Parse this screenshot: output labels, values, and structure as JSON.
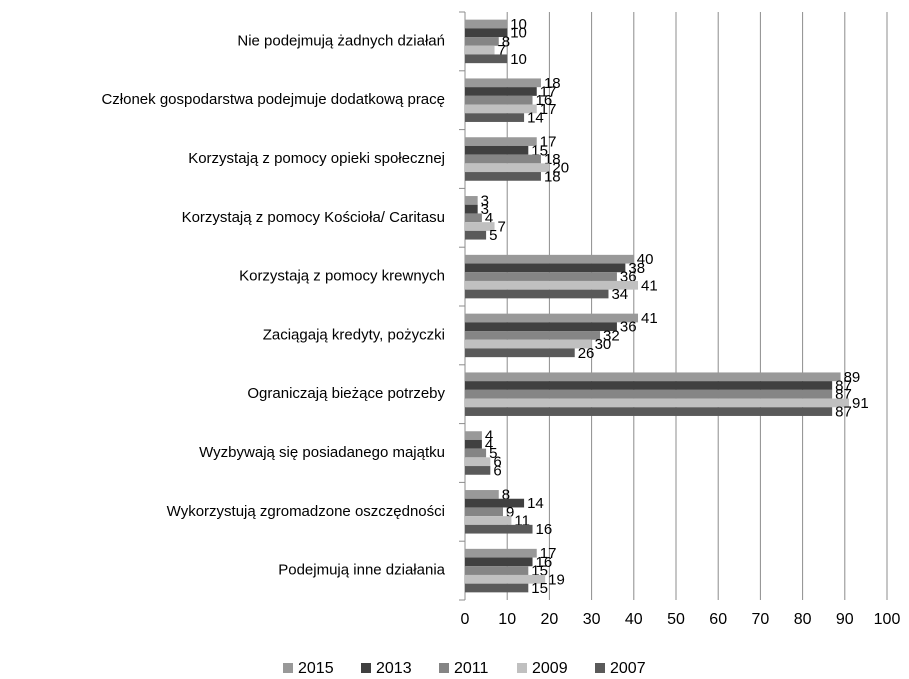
{
  "chart_data": {
    "type": "bar",
    "orientation": "horizontal",
    "categories": [
      "Nie podejmują żadnych działań",
      "Członek gospodarstwa podejmuje dodatkową pracę",
      "Korzystają z pomocy opieki społecznej",
      "Korzystają z pomocy Kościoła/ Caritasu",
      "Korzystają z pomocy krewnych",
      "Zaciągają kredyty, pożyczki",
      "Ograniczają bieżące potrzeby",
      "Wyzbywają się posiadanego majątku",
      "Wykorzystują zgromadzone oszczędności",
      "Podejmują inne działania"
    ],
    "series": [
      {
        "name": "2015",
        "color": "#999999",
        "values": [
          10,
          18,
          17,
          3,
          40,
          41,
          89,
          4,
          8,
          17
        ]
      },
      {
        "name": "2013",
        "color": "#404040",
        "values": [
          10,
          17,
          15,
          3,
          38,
          36,
          87,
          4,
          14,
          16
        ]
      },
      {
        "name": "2011",
        "color": "#858585",
        "values": [
          8,
          16,
          18,
          4,
          36,
          32,
          87,
          5,
          9,
          15
        ]
      },
      {
        "name": "2009",
        "color": "#c0c0c0",
        "values": [
          7,
          17,
          20,
          7,
          41,
          30,
          91,
          6,
          11,
          19
        ]
      },
      {
        "name": "2007",
        "color": "#5a5a5a",
        "values": [
          10,
          14,
          18,
          5,
          34,
          26,
          87,
          6,
          16,
          15
        ]
      }
    ],
    "xlim": [
      0,
      100
    ],
    "xticks": [
      0,
      10,
      20,
      30,
      40,
      50,
      60,
      70,
      80,
      90,
      100
    ],
    "grid": true,
    "legend": "bottom"
  }
}
